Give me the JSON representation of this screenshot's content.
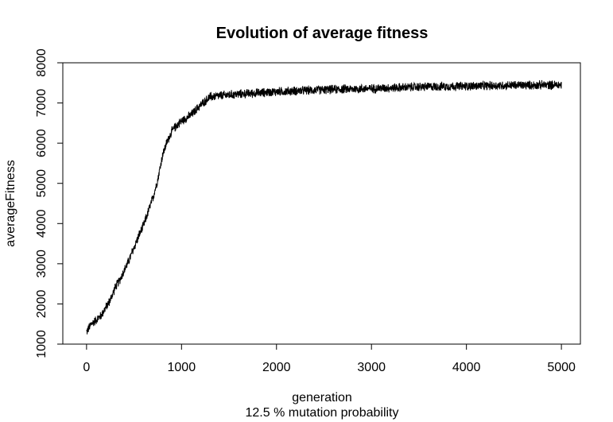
{
  "chart_data": {
    "type": "line",
    "title": "Evolution of average fitness",
    "xlabel": "generation",
    "ylabel": "averageFitness",
    "subtitle": "12.5 % mutation probability",
    "xlim": [
      -250,
      5200
    ],
    "ylim": [
      1000,
      8000
    ],
    "x_ticks": [
      "0",
      "1000",
      "2000",
      "3000",
      "4000",
      "5000"
    ],
    "y_ticks": [
      "1000",
      "2000",
      "3000",
      "4000",
      "5000",
      "6000",
      "7000",
      "8000"
    ],
    "grid": false,
    "series": [
      {
        "color": "#000000",
        "x": [
          0,
          50,
          100,
          150,
          200,
          250,
          300,
          350,
          400,
          450,
          500,
          550,
          600,
          650,
          700,
          750,
          800,
          850,
          900,
          950,
          1000,
          1100,
          1200,
          1300,
          1400,
          1500,
          1600,
          1800,
          2000,
          2200,
          2500,
          3000,
          3500,
          4000,
          4500,
          5000
        ],
        "y": [
          1300,
          1500,
          1600,
          1700,
          1900,
          2100,
          2400,
          2600,
          2850,
          3100,
          3400,
          3700,
          3950,
          4300,
          4650,
          5100,
          5700,
          6050,
          6300,
          6450,
          6550,
          6700,
          6950,
          7150,
          7180,
          7200,
          7220,
          7250,
          7280,
          7300,
          7330,
          7360,
          7400,
          7420,
          7440,
          7450
        ],
        "noise_amplitude": 130
      }
    ]
  }
}
